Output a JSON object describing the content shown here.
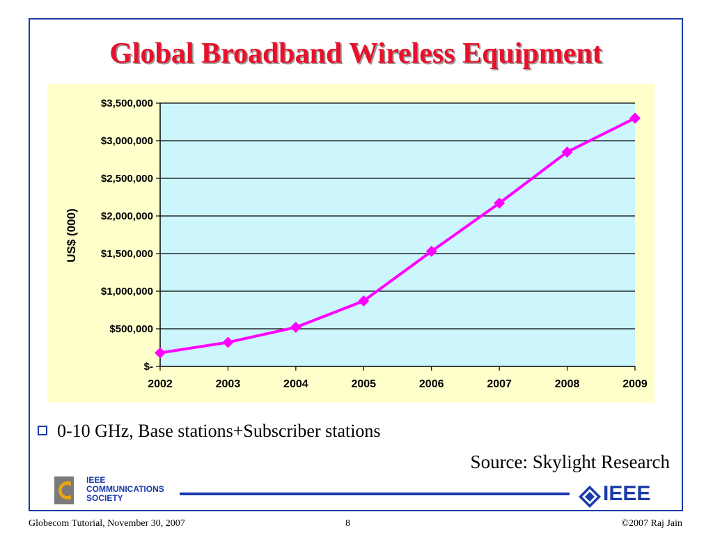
{
  "slide": {
    "title": "Global Broadband Wireless Equipment",
    "bullet": "0-10 GHz, Base stations+Subscriber stations",
    "source": "Source: Skylight Research",
    "footer_left": "Globecom Tutorial, November 30, 2007",
    "page_number": "8",
    "footer_right": "©2007 Raj Jain"
  },
  "logos": {
    "comsoc_lines": [
      "IEEE",
      "COMMUNICATIONS",
      "SOCIETY"
    ],
    "ieee": "IEEE"
  },
  "colors": {
    "title": "#e8102a",
    "line": "#ff00ff",
    "plot_bg": "#ccf6fc",
    "chart_bg": "#ffffcc",
    "brand_blue": "#1a3aa8"
  },
  "chart_data": {
    "type": "line",
    "title": "",
    "xlabel": "",
    "ylabel": "US$ (000)",
    "x": [
      "2002",
      "2003",
      "2004",
      "2005",
      "2006",
      "2007",
      "2008",
      "2009"
    ],
    "series": [
      {
        "values": [
          180000,
          320000,
          520000,
          870000,
          1530000,
          2170000,
          2850000,
          3300000
        ]
      }
    ],
    "yticks": [
      0,
      500000,
      1000000,
      1500000,
      2000000,
      2500000,
      3000000,
      3500000
    ],
    "ytick_labels": [
      "$-",
      "$500,000",
      "$1,000,000",
      "$1,500,000",
      "$2,000,000",
      "$2,500,000",
      "$3,000,000",
      "$3,500,000"
    ],
    "ylim": [
      0,
      3500000
    ],
    "grid": true,
    "legend": "none"
  }
}
